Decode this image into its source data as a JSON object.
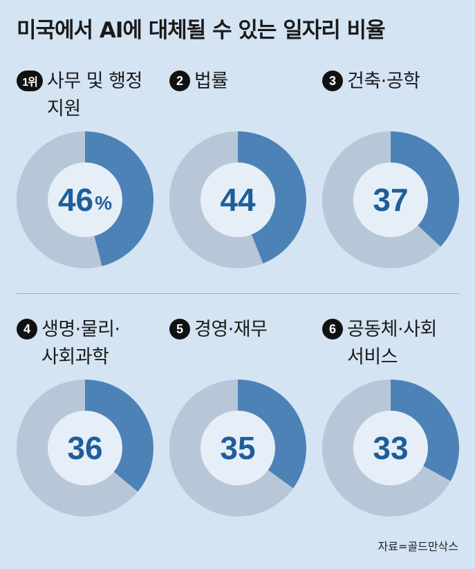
{
  "chart_data": {
    "type": "pie",
    "title": "미국에서 AI에 대체될 수 있는 일자리 비율",
    "unit": "%",
    "colors": {
      "filled": "#4d82b7",
      "remainder": "#b7c7d7",
      "center": "#e6eff8",
      "value_text": "#1f5e9a"
    },
    "items": [
      {
        "rank": "1위",
        "category": "사무 및 행정 지원",
        "value": 46,
        "value_label": "46"
      },
      {
        "rank": "2",
        "category": "법률",
        "value": 44,
        "value_label": "44"
      },
      {
        "rank": "3",
        "category": "건축·공학",
        "value": 37,
        "value_label": "37"
      },
      {
        "rank": "4",
        "category": "생명·물리·사회과학",
        "value": 36,
        "value_label": "36"
      },
      {
        "rank": "5",
        "category": "경영·재무",
        "value": 35,
        "value_label": "35"
      },
      {
        "rank": "6",
        "category": "공동체·사회 서비스",
        "value": 33,
        "value_label": "33"
      }
    ],
    "source": "자료=골드만삭스"
  }
}
